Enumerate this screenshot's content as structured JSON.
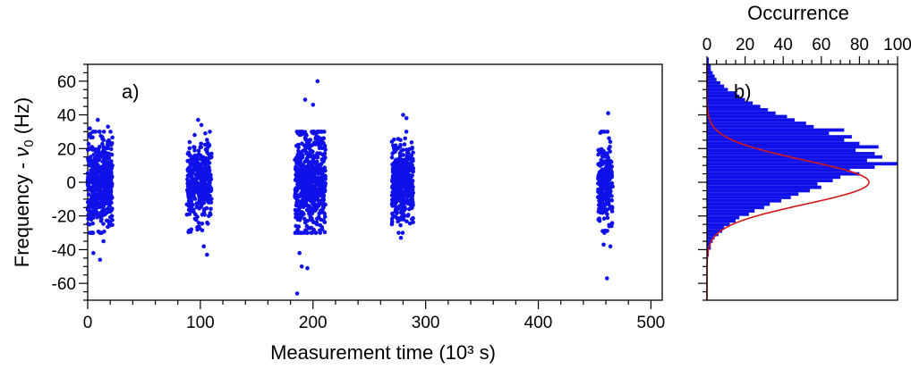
{
  "chart_data": [
    {
      "type": "scatter",
      "panel_label": "a)",
      "xlabel": "Measurement time (10³ s)",
      "ylabel_prefix": "Frequency - ",
      "ylabel_symbol": "ν",
      "ylabel_subscript": "0",
      "ylabel_suffix": " (Hz)",
      "xlim": [
        0,
        510
      ],
      "ylim": [
        -70,
        70
      ],
      "xticks": [
        0,
        100,
        200,
        300,
        400,
        500
      ],
      "yticks": [
        -60,
        -40,
        -20,
        0,
        20,
        40,
        60
      ],
      "grid": false,
      "point_color": "#1010e8",
      "clusters": [
        {
          "x_range": [
            0,
            22
          ],
          "count": 520,
          "y_sigma": 13,
          "outliers": [
            [
              5,
              -42
            ],
            [
              11,
              -46
            ],
            [
              9,
              37
            ],
            [
              2,
              32
            ],
            [
              18,
              33
            ],
            [
              14,
              -35
            ]
          ]
        },
        {
          "x_range": [
            88,
            110
          ],
          "count": 360,
          "y_sigma": 12,
          "outliers": [
            [
              103,
              -38
            ],
            [
              106,
              -43
            ],
            [
              98,
              37
            ],
            [
              92,
              -28
            ],
            [
              101,
              34
            ]
          ]
        },
        {
          "x_range": [
            184,
            211
          ],
          "count": 620,
          "y_sigma": 15,
          "outliers": [
            [
              186,
              -66
            ],
            [
              190,
              -50
            ],
            [
              195,
              -51
            ],
            [
              204,
              60
            ],
            [
              193,
              49
            ],
            [
              200,
              46
            ],
            [
              188,
              -42
            ]
          ]
        },
        {
          "x_range": [
            270,
            289
          ],
          "count": 430,
          "y_sigma": 11,
          "outliers": [
            [
              278,
              -33
            ],
            [
              283,
              38
            ],
            [
              276,
              -30
            ],
            [
              280,
              40
            ]
          ]
        },
        {
          "x_range": [
            453,
            466
          ],
          "count": 260,
          "y_sigma": 12,
          "outliers": [
            [
              461,
              -57
            ],
            [
              462,
              41
            ],
            [
              458,
              -37
            ],
            [
              464,
              -38
            ]
          ]
        }
      ]
    },
    {
      "type": "bar",
      "orientation": "horizontal",
      "panel_label": "b)",
      "xlabel": "Occurrence",
      "xlim": [
        0,
        100
      ],
      "xticks": [
        0,
        20,
        40,
        60,
        80,
        100
      ],
      "ylim": [
        -70,
        70
      ],
      "bin_width": 2,
      "bar_color": "#1010e8",
      "fit_color": "#d01818",
      "fit_type": "gaussian",
      "fit": {
        "amplitude": 85,
        "mean": 0,
        "sigma": 13
      },
      "bins_center_start": -69,
      "counts": [
        0,
        0,
        0,
        0,
        0,
        0,
        0,
        0,
        0,
        0,
        0,
        0,
        0,
        1,
        1,
        2,
        2,
        3,
        4,
        6,
        8,
        9,
        12,
        15,
        17,
        22,
        25,
        30,
        33,
        39,
        44,
        48,
        54,
        60,
        58,
        66,
        70,
        80,
        75,
        88,
        100,
        84,
        92,
        88,
        78,
        90,
        80,
        72,
        76,
        64,
        72,
        56,
        52,
        46,
        42,
        36,
        32,
        28,
        24,
        20,
        17,
        15,
        11,
        9,
        7,
        5,
        4,
        3,
        2,
        2,
        1,
        1,
        0,
        0,
        0
      ]
    }
  ]
}
